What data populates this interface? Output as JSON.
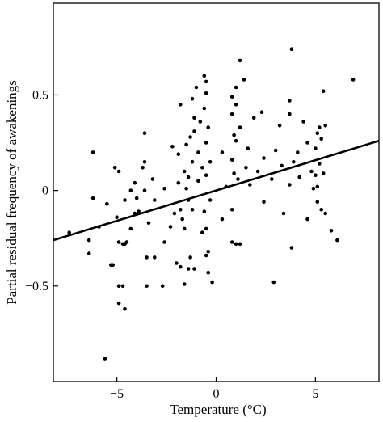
{
  "chart_data": {
    "type": "scatter",
    "title": "",
    "xlabel": "Temperature (°C)",
    "ylabel": "Partial residual frequency of awakenings",
    "xlim": [
      -8.2,
      8.2
    ],
    "ylim": [
      -1.0,
      0.98
    ],
    "xticks": [
      -5,
      0,
      5
    ],
    "xtick_labels": [
      "−5",
      "0",
      "5"
    ],
    "yticks": [
      -0.5,
      0,
      0.5
    ],
    "ytick_labels": [
      "−0.5",
      "0",
      "0.5"
    ],
    "grid": false,
    "legend": "none",
    "marker_color": "#000000",
    "regression_line": {
      "x": [
        -8.2,
        8.2
      ],
      "y": [
        -0.26,
        0.26
      ]
    },
    "points": [
      {
        "x": -5.6,
        "y": -0.88
      },
      {
        "x": -4.6,
        "y": -0.62
      },
      {
        "x": -4.9,
        "y": -0.59
      },
      {
        "x": -4.9,
        "y": -0.5
      },
      {
        "x": -4.7,
        "y": -0.5
      },
      {
        "x": -3.5,
        "y": -0.5
      },
      {
        "x": -2.7,
        "y": -0.5
      },
      {
        "x": -1.6,
        "y": -0.49
      },
      {
        "x": -0.2,
        "y": -0.48
      },
      {
        "x": 2.9,
        "y": -0.48
      },
      {
        "x": -5.2,
        "y": -0.39
      },
      {
        "x": -5.3,
        "y": -0.39
      },
      {
        "x": -0.4,
        "y": -0.43
      },
      {
        "x": -1.4,
        "y": -0.41
      },
      {
        "x": -1.1,
        "y": -0.41
      },
      {
        "x": -1.8,
        "y": -0.4
      },
      {
        "x": -2.0,
        "y": -0.38
      },
      {
        "x": -6.4,
        "y": -0.33
      },
      {
        "x": -3.5,
        "y": -0.35
      },
      {
        "x": -3.1,
        "y": -0.35
      },
      {
        "x": -1.3,
        "y": -0.35
      },
      {
        "x": -0.5,
        "y": -0.34
      },
      {
        "x": -0.4,
        "y": -0.32
      },
      {
        "x": 3.8,
        "y": -0.3
      },
      {
        "x": -4.9,
        "y": -0.27
      },
      {
        "x": -4.7,
        "y": -0.28
      },
      {
        "x": -4.6,
        "y": -0.28
      },
      {
        "x": -4.5,
        "y": -0.27
      },
      {
        "x": -2.6,
        "y": -0.27
      },
      {
        "x": 0.8,
        "y": -0.27
      },
      {
        "x": 1.0,
        "y": -0.28
      },
      {
        "x": 1.2,
        "y": -0.28
      },
      {
        "x": 6.1,
        "y": -0.26
      },
      {
        "x": -6.4,
        "y": -0.26
      },
      {
        "x": -0.7,
        "y": -0.22
      },
      {
        "x": -0.5,
        "y": -0.2
      },
      {
        "x": -1.6,
        "y": -0.2
      },
      {
        "x": -2.3,
        "y": -0.19
      },
      {
        "x": 5.8,
        "y": -0.21
      },
      {
        "x": -4.3,
        "y": -0.2
      },
      {
        "x": -5.9,
        "y": -0.19
      },
      {
        "x": -7.4,
        "y": -0.22
      },
      {
        "x": -3.4,
        "y": -0.17
      },
      {
        "x": -1.7,
        "y": -0.15
      },
      {
        "x": 0.3,
        "y": -0.15
      },
      {
        "x": 4.6,
        "y": -0.15
      },
      {
        "x": 5.5,
        "y": -0.12
      },
      {
        "x": -5.0,
        "y": -0.14
      },
      {
        "x": -4.1,
        "y": -0.12
      },
      {
        "x": -3.9,
        "y": -0.11
      },
      {
        "x": -2.1,
        "y": -0.12
      },
      {
        "x": -1.8,
        "y": -0.1
      },
      {
        "x": -1.2,
        "y": -0.1
      },
      {
        "x": -0.6,
        "y": -0.11
      },
      {
        "x": 0.8,
        "y": -0.1
      },
      {
        "x": 3.4,
        "y": -0.12
      },
      {
        "x": 5.3,
        "y": -0.1
      },
      {
        "x": -5.5,
        "y": -0.07
      },
      {
        "x": -4.6,
        "y": -0.05
      },
      {
        "x": -4.0,
        "y": -0.04
      },
      {
        "x": -6.2,
        "y": -0.04
      },
      {
        "x": -3.1,
        "y": -0.05
      },
      {
        "x": -1.4,
        "y": -0.05
      },
      {
        "x": -0.3,
        "y": -0.05
      },
      {
        "x": 2.4,
        "y": -0.06
      },
      {
        "x": 5.1,
        "y": -0.06
      },
      {
        "x": -4.3,
        "y": 0.0
      },
      {
        "x": -3.6,
        "y": 0.0
      },
      {
        "x": -2.6,
        "y": 0.01
      },
      {
        "x": -1.5,
        "y": 0.01
      },
      {
        "x": 0.5,
        "y": 0.02
      },
      {
        "x": 1.7,
        "y": 0.03
      },
      {
        "x": 3.7,
        "y": 0.03
      },
      {
        "x": 4.9,
        "y": 0.01
      },
      {
        "x": 5.1,
        "y": 0.02
      },
      {
        "x": -4.1,
        "y": 0.04
      },
      {
        "x": -1.9,
        "y": 0.04
      },
      {
        "x": -0.9,
        "y": 0.05
      },
      {
        "x": 1.1,
        "y": 0.06
      },
      {
        "x": 2.8,
        "y": 0.06
      },
      {
        "x": 4.2,
        "y": 0.07
      },
      {
        "x": -3.2,
        "y": 0.06
      },
      {
        "x": -1.4,
        "y": 0.07
      },
      {
        "x": -0.5,
        "y": 0.08
      },
      {
        "x": 0.9,
        "y": 0.09
      },
      {
        "x": 2.1,
        "y": 0.1
      },
      {
        "x": 5.0,
        "y": 0.08
      },
      {
        "x": 5.4,
        "y": 0.09
      },
      {
        "x": -4.9,
        "y": 0.1
      },
      {
        "x": -3.7,
        "y": 0.12
      },
      {
        "x": -1.6,
        "y": 0.1
      },
      {
        "x": -0.7,
        "y": 0.12
      },
      {
        "x": 1.5,
        "y": 0.12
      },
      {
        "x": 3.3,
        "y": 0.13
      },
      {
        "x": 4.8,
        "y": 0.1
      },
      {
        "x": -3.6,
        "y": 0.15
      },
      {
        "x": -1.2,
        "y": 0.15
      },
      {
        "x": -0.3,
        "y": 0.15
      },
      {
        "x": 0.8,
        "y": 0.16
      },
      {
        "x": 2.4,
        "y": 0.17
      },
      {
        "x": 3.9,
        "y": 0.15
      },
      {
        "x": 5.2,
        "y": 0.14
      },
      {
        "x": -5.1,
        "y": 0.12
      },
      {
        "x": -6.2,
        "y": 0.2
      },
      {
        "x": -1.9,
        "y": 0.19
      },
      {
        "x": -0.9,
        "y": 0.2
      },
      {
        "x": 0.3,
        "y": 0.2
      },
      {
        "x": 1.6,
        "y": 0.22
      },
      {
        "x": 3.0,
        "y": 0.21
      },
      {
        "x": 4.1,
        "y": 0.2
      },
      {
        "x": 5.0,
        "y": 0.22
      },
      {
        "x": -2.2,
        "y": 0.23
      },
      {
        "x": -1.5,
        "y": 0.24
      },
      {
        "x": -0.5,
        "y": 0.25
      },
      {
        "x": 1.0,
        "y": 0.26
      },
      {
        "x": 4.6,
        "y": 0.25
      },
      {
        "x": 5.3,
        "y": 0.27
      },
      {
        "x": -1.3,
        "y": 0.28
      },
      {
        "x": 0.9,
        "y": 0.29
      },
      {
        "x": 5.1,
        "y": 0.3
      },
      {
        "x": -3.6,
        "y": 0.3
      },
      {
        "x": -1.1,
        "y": 0.31
      },
      {
        "x": -0.4,
        "y": 0.33
      },
      {
        "x": 1.2,
        "y": 0.33
      },
      {
        "x": 3.2,
        "y": 0.34
      },
      {
        "x": 5.2,
        "y": 0.33
      },
      {
        "x": 5.5,
        "y": 0.34
      },
      {
        "x": -0.8,
        "y": 0.36
      },
      {
        "x": 1.9,
        "y": 0.38
      },
      {
        "x": 3.7,
        "y": 0.4
      },
      {
        "x": -1.1,
        "y": 0.38
      },
      {
        "x": 0.8,
        "y": 0.4
      },
      {
        "x": 2.3,
        "y": 0.41
      },
      {
        "x": 4.4,
        "y": 0.36
      },
      {
        "x": -1.8,
        "y": 0.45
      },
      {
        "x": -0.6,
        "y": 0.43
      },
      {
        "x": 1.0,
        "y": 0.45
      },
      {
        "x": 3.7,
        "y": 0.47
      },
      {
        "x": -1.2,
        "y": 0.48
      },
      {
        "x": -0.5,
        "y": 0.51
      },
      {
        "x": 0.8,
        "y": 0.49
      },
      {
        "x": 5.4,
        "y": 0.52
      },
      {
        "x": -1.0,
        "y": 0.54
      },
      {
        "x": 1.0,
        "y": 0.54
      },
      {
        "x": -0.5,
        "y": 0.57
      },
      {
        "x": -0.6,
        "y": 0.6
      },
      {
        "x": 1.4,
        "y": 0.58
      },
      {
        "x": 6.9,
        "y": 0.58
      },
      {
        "x": 1.2,
        "y": 0.68
      },
      {
        "x": 3.8,
        "y": 0.74
      }
    ]
  }
}
